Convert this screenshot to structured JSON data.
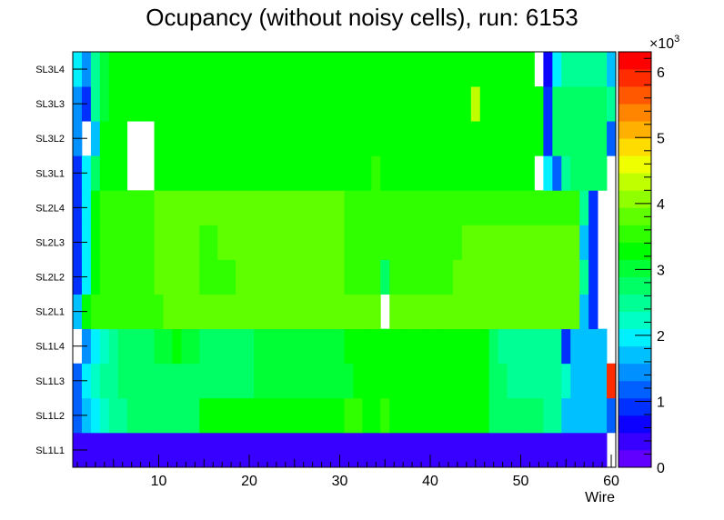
{
  "chart_data": {
    "type": "heatmap",
    "title": "Ocupancy (without noisy cells), run: 6153",
    "xlabel": "Wire",
    "ylabel": "",
    "x_range": [
      0.5,
      60.5
    ],
    "x_ticks": [
      10,
      20,
      30,
      40,
      50,
      60
    ],
    "rows": [
      "SL1L1",
      "SL1L2",
      "SL1L3",
      "SL1L4",
      "SL2L1",
      "SL2L2",
      "SL2L3",
      "SL2L4",
      "SL3L1",
      "SL3L2",
      "SL3L3",
      "SL3L4"
    ],
    "z_range": [
      0,
      6300
    ],
    "z_multiplier_label": "×10",
    "z_multiplier_exp": "3",
    "z_ticks": [
      "0",
      "1",
      "2",
      "3",
      "4",
      "5",
      "6"
    ],
    "palette": [
      "#6100ff",
      "#3700ff",
      "#0c00ff",
      "#0030ff",
      "#0060ff",
      "#0090ff",
      "#00c0ff",
      "#00f0ff",
      "#00ffc4",
      "#00ff94",
      "#00ff64",
      "#00ff34",
      "#00ff00",
      "#30ff00",
      "#60ff00",
      "#90ff00",
      "#c0ff00",
      "#f0ff00",
      "#ffdc00",
      "#ffb000",
      "#ff8400",
      "#ff5800",
      "#ff2c00",
      "#ff0000"
    ],
    "values": [
      [
        500,
        500,
        500,
        500,
        500,
        500,
        500,
        500,
        500,
        500,
        500,
        500,
        500,
        500,
        500,
        500,
        500,
        500,
        500,
        500,
        500,
        500,
        500,
        500,
        500,
        500,
        500,
        500,
        500,
        500,
        500,
        500,
        500,
        500,
        500,
        500,
        500,
        500,
        500,
        500,
        500,
        500,
        500,
        500,
        500,
        500,
        500,
        500,
        500,
        500,
        500,
        500,
        500,
        500,
        500,
        500,
        500,
        500,
        500,
        0
      ],
      [
        1200,
        1600,
        2000,
        2200,
        2600,
        2600,
        2800,
        2800,
        2800,
        2800,
        2800,
        2800,
        2800,
        2800,
        3200,
        3200,
        3200,
        3200,
        3200,
        3200,
        3200,
        3200,
        3200,
        3200,
        3200,
        3200,
        3200,
        3200,
        3200,
        3200,
        3600,
        3600,
        3200,
        3200,
        3600,
        3200,
        3200,
        3200,
        3200,
        3200,
        3200,
        3200,
        3200,
        3200,
        3200,
        3200,
        2800,
        2800,
        2800,
        2800,
        2800,
        2800,
        2400,
        2400,
        1600,
        1600,
        1600,
        1600,
        1600,
        1200
      ],
      [
        1300,
        2000,
        2300,
        2400,
        2500,
        2800,
        2800,
        2800,
        2800,
        2800,
        2800,
        2800,
        2800,
        2800,
        2800,
        2800,
        2800,
        2800,
        2800,
        2800,
        3000,
        3000,
        3000,
        3000,
        3000,
        3000,
        3000,
        3000,
        3000,
        3000,
        3000,
        3200,
        3200,
        3200,
        3200,
        3200,
        3200,
        3200,
        3200,
        3200,
        3200,
        3200,
        3200,
        3200,
        3200,
        3200,
        2800,
        2800,
        2600,
        2400,
        2400,
        2400,
        2400,
        2400,
        2200,
        1800,
        1800,
        1800,
        1800,
        6000
      ],
      [
        0,
        1500,
        1900,
        2200,
        2600,
        2800,
        2800,
        2800,
        2800,
        3000,
        3000,
        3200,
        3000,
        3000,
        2800,
        2800,
        2800,
        2800,
        2800,
        2800,
        3000,
        3000,
        3000,
        3000,
        3000,
        3000,
        3000,
        3000,
        3000,
        3000,
        3200,
        3200,
        3200,
        3200,
        3200,
        3200,
        3200,
        3200,
        3200,
        3200,
        3200,
        3200,
        3200,
        3200,
        3200,
        3200,
        2800,
        2600,
        2400,
        2400,
        2400,
        2400,
        2400,
        2400,
        800,
        1600,
        1600,
        1600,
        1600,
        0
      ],
      [
        1800,
        3200,
        3600,
        3600,
        3600,
        3600,
        3600,
        3600,
        3600,
        3600,
        3800,
        3800,
        3800,
        3800,
        3800,
        3800,
        3800,
        3800,
        3800,
        3800,
        3800,
        3800,
        3800,
        3800,
        3800,
        3800,
        3800,
        3800,
        3800,
        3800,
        3800,
        3800,
        3800,
        3800,
        0,
        3800,
        3800,
        3800,
        3800,
        3800,
        3800,
        3800,
        3800,
        3800,
        3800,
        3800,
        3800,
        3800,
        3800,
        3800,
        3800,
        3800,
        3800,
        3800,
        3800,
        3800,
        1800,
        800,
        0,
        0
      ],
      [
        1000,
        2000,
        3200,
        3600,
        3600,
        3600,
        3600,
        3600,
        3600,
        3800,
        3800,
        3800,
        3800,
        3800,
        3600,
        3600,
        3600,
        3600,
        3800,
        3800,
        3800,
        3800,
        3800,
        3800,
        3800,
        3800,
        3800,
        3800,
        3800,
        3800,
        3600,
        3600,
        3600,
        3600,
        2800,
        3600,
        3600,
        3600,
        3600,
        3600,
        3600,
        3600,
        3800,
        3800,
        3800,
        3800,
        3800,
        3800,
        3800,
        3800,
        3800,
        3800,
        3800,
        3800,
        3800,
        3800,
        2400,
        800,
        0,
        0
      ],
      [
        1000,
        2000,
        3200,
        3600,
        3600,
        3600,
        3600,
        3600,
        3600,
        3800,
        3800,
        3800,
        3800,
        3800,
        3600,
        3600,
        3800,
        3800,
        3800,
        3800,
        3800,
        3800,
        3800,
        3800,
        3800,
        3800,
        3800,
        3800,
        3800,
        3800,
        3600,
        3600,
        3600,
        3600,
        3600,
        3600,
        3600,
        3600,
        3600,
        3600,
        3600,
        3600,
        3600,
        3800,
        3800,
        3800,
        3800,
        3800,
        3800,
        3800,
        3800,
        3800,
        3800,
        3800,
        3800,
        3800,
        1800,
        800,
        0,
        0
      ],
      [
        1000,
        2000,
        3200,
        3600,
        3600,
        3600,
        3600,
        3600,
        3600,
        3800,
        3800,
        3800,
        3800,
        3800,
        3800,
        3800,
        3800,
        3800,
        3800,
        3800,
        3800,
        3800,
        3800,
        3800,
        3800,
        3800,
        3800,
        3800,
        3800,
        3800,
        3600,
        3600,
        3600,
        3600,
        3600,
        3600,
        3600,
        3600,
        3600,
        3600,
        3600,
        3600,
        3600,
        3600,
        3600,
        3600,
        3600,
        3600,
        3600,
        3600,
        3600,
        3600,
        3600,
        3600,
        3600,
        3600,
        2400,
        800,
        0,
        0
      ],
      [
        1000,
        2000,
        2800,
        3200,
        3200,
        3200,
        0,
        0,
        0,
        3200,
        3200,
        3200,
        3200,
        3200,
        3200,
        3200,
        3200,
        3200,
        3200,
        3200,
        3200,
        3200,
        3200,
        3200,
        3200,
        3200,
        3200,
        3200,
        3200,
        3200,
        3200,
        3200,
        3200,
        3600,
        3200,
        3200,
        3200,
        3200,
        3200,
        3200,
        3200,
        3200,
        3200,
        3200,
        3200,
        3200,
        3200,
        3200,
        3200,
        3200,
        3200,
        0,
        2000,
        1200,
        2600,
        2800,
        2800,
        2800,
        2800,
        0
      ],
      [
        1400,
        0,
        1600,
        3200,
        3200,
        3200,
        0,
        0,
        0,
        3200,
        3200,
        3200,
        3200,
        3200,
        3200,
        3200,
        3200,
        3200,
        3200,
        3200,
        3200,
        3200,
        3200,
        3200,
        3200,
        3200,
        3200,
        3200,
        3200,
        3200,
        3200,
        3200,
        3200,
        3200,
        3200,
        3200,
        3200,
        3200,
        3200,
        3200,
        3200,
        3200,
        3200,
        3200,
        3200,
        3200,
        3200,
        3200,
        3200,
        3200,
        3200,
        3200,
        800,
        2800,
        2800,
        2800,
        2800,
        2800,
        2800,
        1200
      ],
      [
        1400,
        1000,
        2400,
        3000,
        3200,
        3200,
        3200,
        3200,
        3200,
        3200,
        3200,
        3200,
        3200,
        3200,
        3200,
        3200,
        3200,
        3200,
        3200,
        3200,
        3200,
        3200,
        3200,
        3200,
        3200,
        3200,
        3200,
        3200,
        3200,
        3200,
        3200,
        3200,
        3200,
        3200,
        3200,
        3200,
        3200,
        3200,
        3200,
        3200,
        3200,
        3200,
        3200,
        3200,
        4200,
        3200,
        3200,
        3200,
        3200,
        3200,
        3200,
        3200,
        800,
        2800,
        2800,
        2800,
        2800,
        2800,
        2800,
        2400
      ],
      [
        2000,
        1400,
        2400,
        3000,
        3200,
        3200,
        3200,
        3200,
        3200,
        3200,
        3200,
        3200,
        3200,
        3200,
        3200,
        3200,
        3200,
        3200,
        3200,
        3200,
        3200,
        3200,
        3200,
        3200,
        3200,
        3200,
        3200,
        3200,
        3200,
        3200,
        3200,
        3200,
        3200,
        3200,
        3200,
        3200,
        3200,
        3200,
        3200,
        3200,
        3200,
        3200,
        3200,
        3200,
        3200,
        3200,
        3200,
        3200,
        3200,
        3200,
        3200,
        0,
        600,
        2000,
        2600,
        2600,
        2600,
        2600,
        2600,
        1600
      ]
    ]
  }
}
